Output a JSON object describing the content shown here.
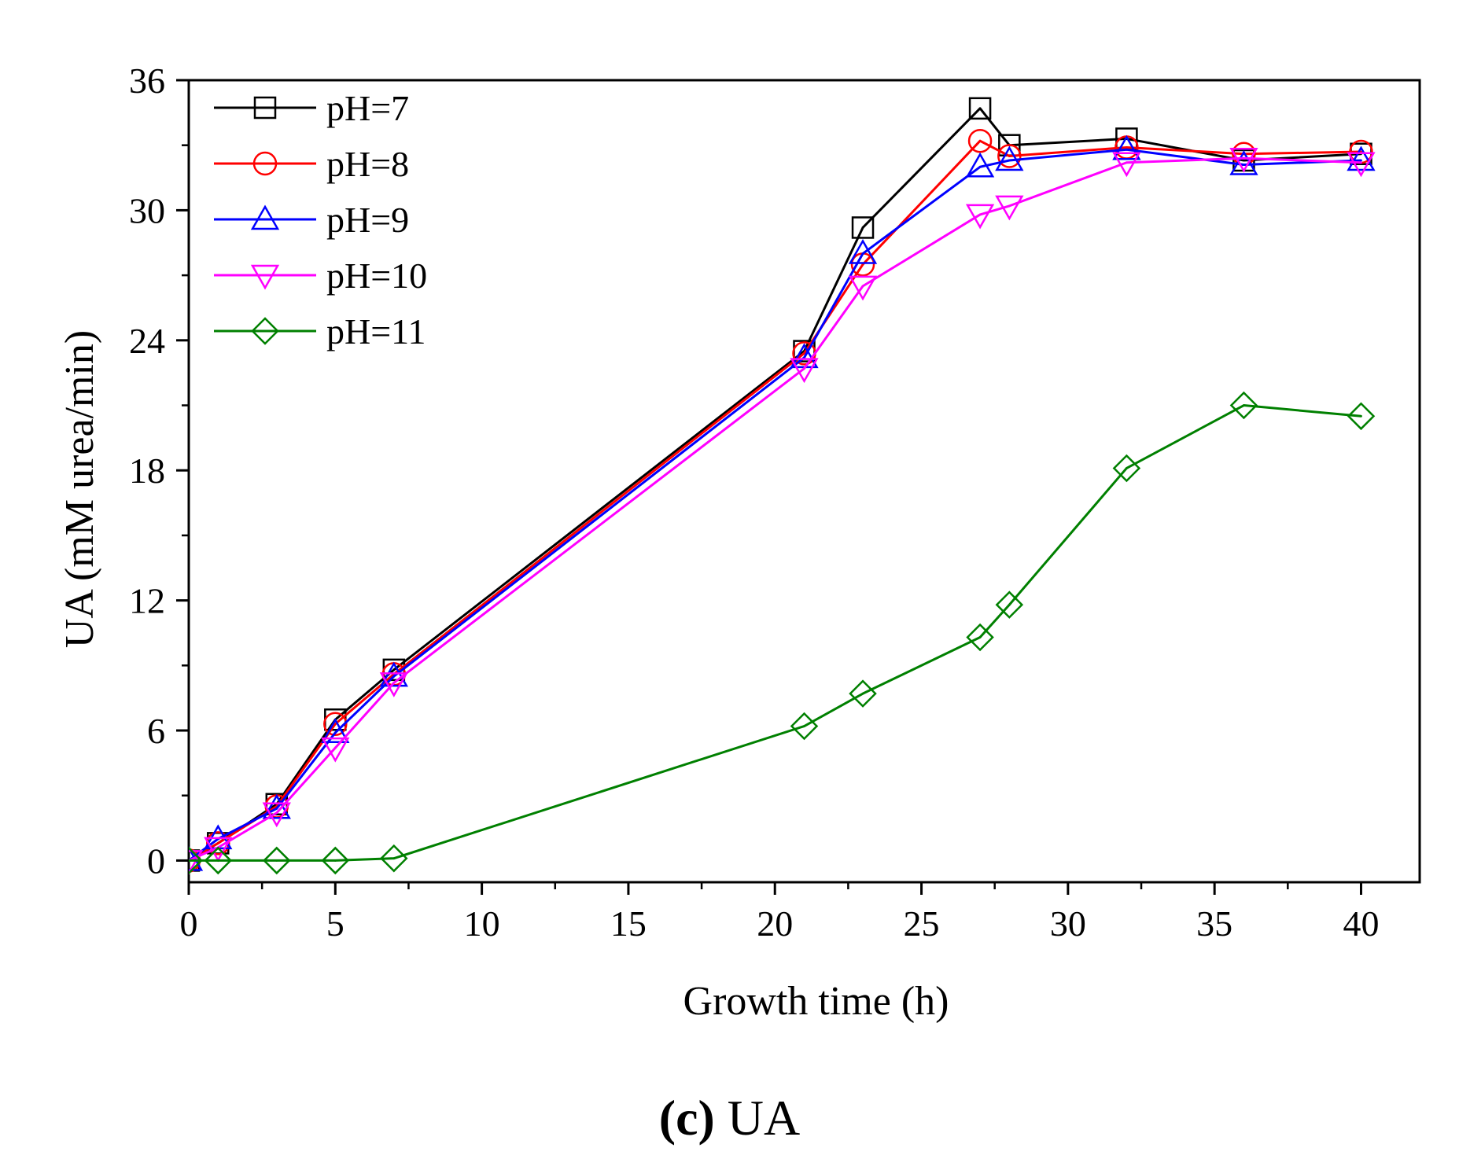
{
  "chart_data": {
    "type": "line",
    "title": "",
    "xlabel": "Growth time (h)",
    "ylabel": "UA (mM urea/min)",
    "xlim": [
      0,
      42
    ],
    "ylim": [
      -1,
      36
    ],
    "xticks": [
      0,
      5,
      10,
      15,
      20,
      25,
      30,
      35,
      40
    ],
    "yticks": [
      0,
      6,
      12,
      18,
      24,
      30,
      36
    ],
    "grid": false,
    "legend_position": "top-left",
    "series": [
      {
        "name": "pH=7",
        "color": "#000000",
        "marker": "square",
        "x": [
          0,
          1,
          3,
          5,
          7,
          21,
          23,
          27,
          28,
          32,
          36,
          40
        ],
        "y": [
          0,
          0.8,
          2.6,
          6.5,
          8.8,
          23.5,
          29.2,
          34.7,
          33.0,
          33.3,
          32.3,
          32.6
        ]
      },
      {
        "name": "pH=8",
        "color": "#ff0000",
        "marker": "circle",
        "x": [
          0,
          1,
          3,
          5,
          7,
          21,
          23,
          27,
          28,
          32,
          36,
          40
        ],
        "y": [
          0,
          0.8,
          2.5,
          6.3,
          8.6,
          23.4,
          27.5,
          33.2,
          32.5,
          32.9,
          32.6,
          32.7
        ]
      },
      {
        "name": "pH=9",
        "color": "#0000ff",
        "marker": "triangle-up",
        "x": [
          0,
          1,
          3,
          5,
          7,
          21,
          23,
          27,
          28,
          32,
          36,
          40
        ],
        "y": [
          0,
          1.0,
          2.4,
          5.9,
          8.5,
          23.2,
          28.0,
          32.0,
          32.3,
          32.8,
          32.1,
          32.3
        ]
      },
      {
        "name": "pH=10",
        "color": "#ff00ff",
        "marker": "triangle-down",
        "x": [
          0,
          1,
          3,
          5,
          7,
          21,
          23,
          27,
          28,
          32,
          36,
          40
        ],
        "y": [
          0,
          0.6,
          2.2,
          5.2,
          8.2,
          22.7,
          26.5,
          29.8,
          30.2,
          32.2,
          32.4,
          32.2
        ]
      },
      {
        "name": "pH=11",
        "color": "#008000",
        "marker": "diamond",
        "x": [
          0,
          1,
          3,
          5,
          7,
          21,
          23,
          27,
          28,
          32,
          36,
          40
        ],
        "y": [
          0,
          0,
          0,
          0,
          0.1,
          6.2,
          7.7,
          10.3,
          11.8,
          18.1,
          21.0,
          20.5
        ]
      }
    ]
  },
  "caption": {
    "letter": "(c)",
    "text": " UA"
  }
}
